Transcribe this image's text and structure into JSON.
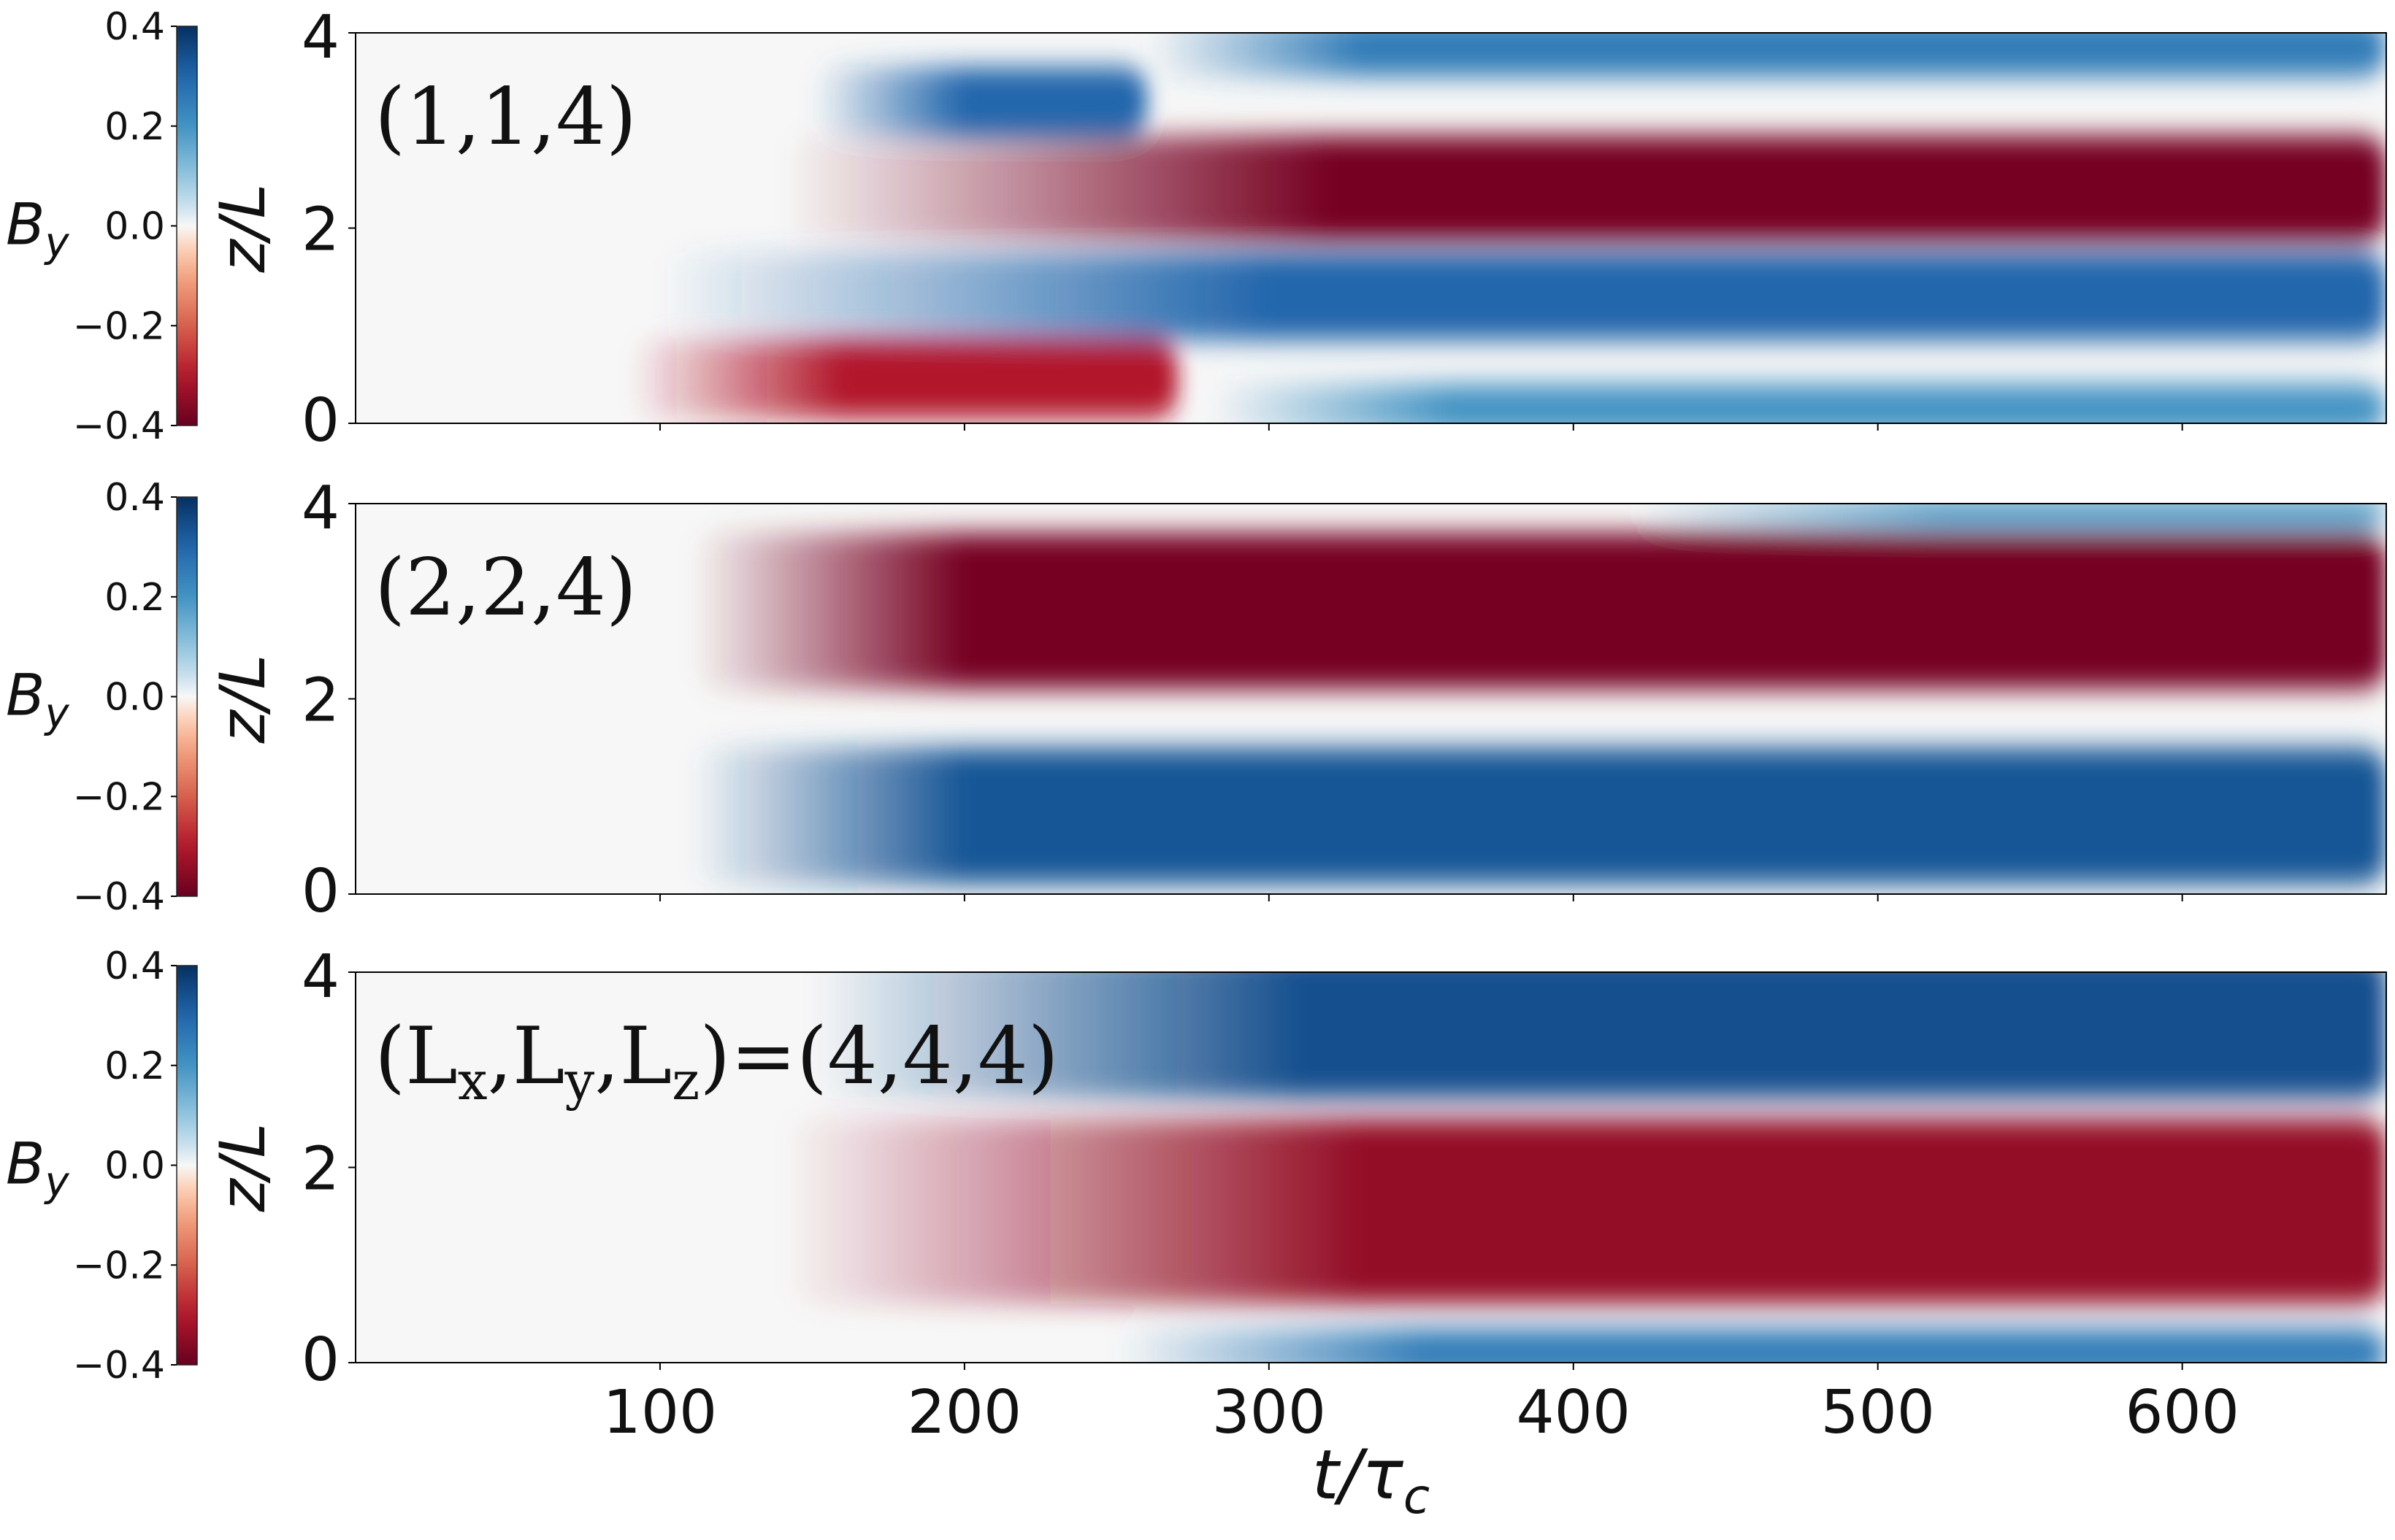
{
  "chart_data": {
    "type": "heatmap",
    "figure_note": "Space-time diagrams of B_y for three box sizes",
    "colormap": {
      "name": "RdBu",
      "low_color": "#67001f",
      "mid_color": "#f7f7f7",
      "high_color": "#053061",
      "range": [
        -0.4,
        0.4
      ],
      "ticks": [
        "0.4",
        "0.2",
        "0.0",
        "−0.2",
        "−0.4"
      ],
      "label": "B_y"
    },
    "xlabel": "t/τ_c",
    "ylabel": "z/L",
    "xlim": [
      0,
      667
    ],
    "ylim": [
      0,
      4
    ],
    "xticks": [
      100,
      200,
      300,
      400,
      500,
      600
    ],
    "xtick_labels": [
      "100",
      "200",
      "300",
      "400",
      "500",
      "600"
    ],
    "yticks": [
      0,
      2,
      4
    ],
    "ytick_labels": [
      "0",
      "2",
      "4"
    ],
    "panels": [
      {
        "label_parts": [
          {
            "t": "(1,1,4)",
            "sub": false
          }
        ],
        "field_bands": [
          {
            "z_center": 3.3,
            "z_halfwidth": 0.35,
            "value": 0.3,
            "t_start": 150,
            "t_full": 200,
            "t_end": 260
          },
          {
            "z_center": 3.85,
            "z_halfwidth": 0.3,
            "value": 0.25,
            "t_start": 260,
            "t_full": 330,
            "t_end": 667
          },
          {
            "z_center": 2.4,
            "z_halfwidth": 0.55,
            "value": -0.38,
            "t_start": 140,
            "t_full": 320,
            "t_end": 667
          },
          {
            "z_center": 1.3,
            "z_halfwidth": 0.45,
            "value": 0.3,
            "t_start": 100,
            "t_full": 300,
            "t_end": 667
          },
          {
            "z_center": 0.45,
            "z_halfwidth": 0.4,
            "value": -0.3,
            "t_start": 90,
            "t_full": 160,
            "t_end": 270
          },
          {
            "z_center": 0.15,
            "z_halfwidth": 0.25,
            "value": 0.2,
            "t_start": 280,
            "t_full": 360,
            "t_end": 667
          }
        ]
      },
      {
        "label_parts": [
          {
            "t": "(2,2,4)",
            "sub": false
          }
        ],
        "field_bands": [
          {
            "z_center": 2.9,
            "z_halfwidth": 0.8,
            "value": -0.38,
            "t_start": 110,
            "t_full": 200,
            "t_end": 667
          },
          {
            "z_center": 0.8,
            "z_halfwidth": 0.7,
            "value": 0.33,
            "t_start": 110,
            "t_full": 200,
            "t_end": 667
          },
          {
            "z_center": 3.9,
            "z_halfwidth": 0.15,
            "value": 0.18,
            "t_start": 420,
            "t_full": 520,
            "t_end": 667
          }
        ]
      },
      {
        "label_parts": [
          {
            "t": "(L",
            "sub": false
          },
          {
            "t": "x",
            "sub": true
          },
          {
            "t": ",L",
            "sub": false
          },
          {
            "t": "y",
            "sub": true
          },
          {
            "t": ",L",
            "sub": false
          },
          {
            "t": "z",
            "sub": true
          },
          {
            "t": ")=(4,4,4)",
            "sub": false
          }
        ],
        "field_bands": [
          {
            "z_center": 3.45,
            "z_halfwidth": 0.75,
            "value": 0.34,
            "t_start": 150,
            "t_full": 310,
            "t_end": 667
          },
          {
            "z_center": 1.55,
            "z_halfwidth": 0.95,
            "value": -0.34,
            "t_start": 140,
            "t_full": 330,
            "t_end": 667
          },
          {
            "z_center": 0.1,
            "z_halfwidth": 0.25,
            "value": 0.25,
            "t_start": 250,
            "t_full": 350,
            "t_end": 667
          }
        ]
      }
    ]
  }
}
